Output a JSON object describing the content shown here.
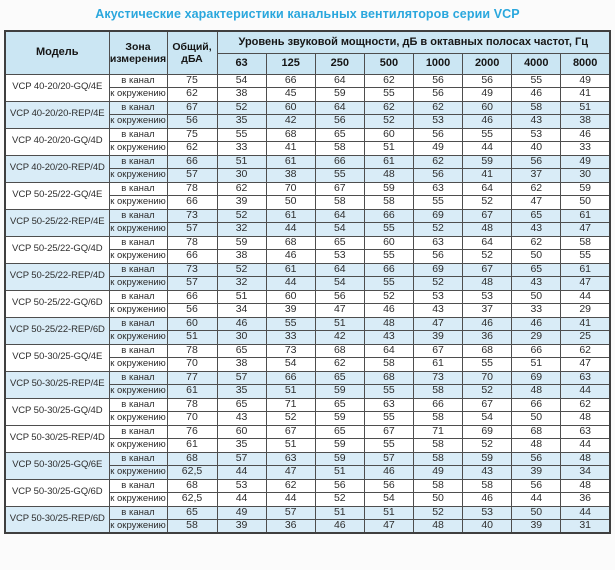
{
  "title": "Акустические характеристики канальных вентиляторов  серии VCP",
  "table": {
    "headers": {
      "model": "Модель",
      "zone": "Зона измерения",
      "total": "Общий, дБА",
      "spl": "Уровень звуковой мощности, дБ в октавных полосах частот, Гц",
      "frequencies": [
        "63",
        "125",
        "250",
        "500",
        "1000",
        "2000",
        "4000",
        "8000"
      ]
    },
    "zone_labels": {
      "duct": "в канал",
      "ambient": "к окружению"
    },
    "colors": {
      "title": "#2aa7dd",
      "header_bg": "#cbe6f3",
      "shaded_row_bg": "#d9ecf7",
      "border": "#4e4e4e"
    },
    "rows": [
      {
        "model": "VCP 40-20/20-GQ/4E",
        "shaded": false,
        "duct": {
          "total": "75",
          "values": [
            54,
            66,
            64,
            62,
            56,
            56,
            55,
            49
          ]
        },
        "ambient": {
          "total": "62",
          "values": [
            38,
            45,
            59,
            55,
            56,
            49,
            46,
            41
          ]
        }
      },
      {
        "model": "VCP 40-20/20-REP/4E",
        "shaded": true,
        "duct": {
          "total": "67",
          "values": [
            52,
            60,
            64,
            62,
            62,
            60,
            58,
            51
          ]
        },
        "ambient": {
          "total": "56",
          "values": [
            35,
            42,
            56,
            52,
            53,
            46,
            43,
            38
          ]
        }
      },
      {
        "model": "VCP 40-20/20-GQ/4D",
        "shaded": false,
        "duct": {
          "total": "75",
          "values": [
            55,
            68,
            65,
            60,
            56,
            55,
            53,
            46
          ]
        },
        "ambient": {
          "total": "62",
          "values": [
            33,
            41,
            58,
            51,
            49,
            44,
            40,
            33
          ]
        }
      },
      {
        "model": "VCP 40-20/20-REP/4D",
        "shaded": true,
        "duct": {
          "total": "66",
          "values": [
            51,
            61,
            66,
            61,
            62,
            59,
            56,
            49
          ]
        },
        "ambient": {
          "total": "57",
          "values": [
            30,
            38,
            55,
            48,
            56,
            41,
            37,
            30
          ]
        }
      },
      {
        "model": "VCP 50-25/22-GQ/4E",
        "shaded": false,
        "duct": {
          "total": "78",
          "values": [
            62,
            70,
            67,
            59,
            63,
            64,
            62,
            59
          ]
        },
        "ambient": {
          "total": "66",
          "values": [
            39,
            50,
            58,
            58,
            55,
            52,
            47,
            50
          ]
        }
      },
      {
        "model": "VCP 50-25/22-REP/4E",
        "shaded": true,
        "duct": {
          "total": "73",
          "values": [
            52,
            61,
            64,
            66,
            69,
            67,
            65,
            61
          ]
        },
        "ambient": {
          "total": "57",
          "values": [
            32,
            44,
            54,
            55,
            52,
            48,
            43,
            47
          ]
        }
      },
      {
        "model": "VCP 50-25/22-GQ/4D",
        "shaded": false,
        "duct": {
          "total": "78",
          "values": [
            59,
            68,
            65,
            60,
            63,
            64,
            62,
            58
          ]
        },
        "ambient": {
          "total": "66",
          "values": [
            38,
            46,
            53,
            55,
            56,
            52,
            50,
            55
          ]
        }
      },
      {
        "model": "VCP 50-25/22-REP/4D",
        "shaded": true,
        "duct": {
          "total": "73",
          "values": [
            52,
            61,
            64,
            66,
            69,
            67,
            65,
            61
          ]
        },
        "ambient": {
          "total": "57",
          "values": [
            32,
            44,
            54,
            55,
            52,
            48,
            43,
            47
          ]
        }
      },
      {
        "model": "VCP 50-25/22-GQ/6D",
        "shaded": false,
        "duct": {
          "total": "66",
          "values": [
            51,
            60,
            56,
            52,
            53,
            53,
            50,
            44
          ]
        },
        "ambient": {
          "total": "56",
          "values": [
            34,
            39,
            47,
            46,
            43,
            37,
            33,
            29
          ]
        }
      },
      {
        "model": "VCP 50-25/22-REP/6D",
        "shaded": true,
        "duct": {
          "total": "60",
          "values": [
            46,
            55,
            51,
            48,
            47,
            46,
            46,
            41
          ]
        },
        "ambient": {
          "total": "51",
          "values": [
            30,
            33,
            42,
            43,
            39,
            36,
            29,
            25
          ]
        }
      },
      {
        "model": "VCP 50-30/25-GQ/4E",
        "shaded": false,
        "duct": {
          "total": "78",
          "values": [
            65,
            73,
            68,
            64,
            67,
            68,
            66,
            62
          ]
        },
        "ambient": {
          "total": "70",
          "values": [
            38,
            54,
            62,
            58,
            61,
            55,
            51,
            47
          ]
        }
      },
      {
        "model": "VCP 50-30/25-REP/4E",
        "shaded": true,
        "duct": {
          "total": "77",
          "values": [
            57,
            66,
            65,
            68,
            73,
            70,
            69,
            63
          ]
        },
        "ambient": {
          "total": "61",
          "values": [
            35,
            51,
            59,
            55,
            58,
            52,
            48,
            44
          ]
        }
      },
      {
        "model": "VCP 50-30/25-GQ/4D",
        "shaded": false,
        "duct": {
          "total": "78",
          "values": [
            65,
            71,
            65,
            63,
            66,
            67,
            66,
            62
          ]
        },
        "ambient": {
          "total": "70",
          "values": [
            43,
            52,
            59,
            55,
            58,
            54,
            50,
            48
          ]
        }
      },
      {
        "model": "VCP 50-30/25-REP/4D",
        "shaded": false,
        "duct": {
          "total": "76",
          "values": [
            60,
            67,
            65,
            67,
            71,
            69,
            68,
            63
          ]
        },
        "ambient": {
          "total": "61",
          "values": [
            35,
            51,
            59,
            55,
            58,
            52,
            48,
            44
          ]
        }
      },
      {
        "model": "VCP 50-30/25-GQ/6E",
        "shaded": true,
        "duct": {
          "total": "68",
          "values": [
            57,
            63,
            59,
            57,
            58,
            59,
            56,
            48
          ]
        },
        "ambient": {
          "total": "62,5",
          "values": [
            44,
            47,
            51,
            46,
            49,
            43,
            39,
            34
          ]
        }
      },
      {
        "model": "VCP 50-30/25-GQ/6D",
        "shaded": false,
        "duct": {
          "total": "68",
          "values": [
            53,
            62,
            56,
            56,
            58,
            58,
            56,
            48
          ]
        },
        "ambient": {
          "total": "62,5",
          "values": [
            44,
            44,
            52,
            54,
            50,
            46,
            44,
            36
          ]
        }
      },
      {
        "model": "VCP 50-30/25-REP/6D",
        "shaded": true,
        "duct": {
          "total": "65",
          "values": [
            49,
            57,
            51,
            51,
            52,
            53,
            50,
            44
          ]
        },
        "ambient": {
          "total": "58",
          "values": [
            39,
            36,
            46,
            47,
            48,
            40,
            39,
            31
          ]
        }
      }
    ]
  }
}
